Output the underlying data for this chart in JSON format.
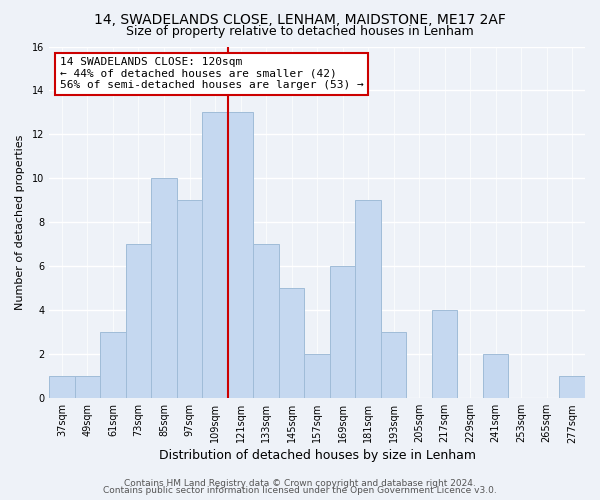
{
  "title1": "14, SWADELANDS CLOSE, LENHAM, MAIDSTONE, ME17 2AF",
  "title2": "Size of property relative to detached houses in Lenham",
  "xlabel": "Distribution of detached houses by size in Lenham",
  "ylabel": "Number of detached properties",
  "categories": [
    "37sqm",
    "49sqm",
    "61sqm",
    "73sqm",
    "85sqm",
    "97sqm",
    "109sqm",
    "121sqm",
    "133sqm",
    "145sqm",
    "157sqm",
    "169sqm",
    "181sqm",
    "193sqm",
    "205sqm",
    "217sqm",
    "229sqm",
    "241sqm",
    "253sqm",
    "265sqm",
    "277sqm"
  ],
  "values": [
    1,
    1,
    3,
    7,
    10,
    9,
    13,
    13,
    7,
    5,
    2,
    6,
    9,
    3,
    0,
    4,
    0,
    2,
    0,
    0,
    1
  ],
  "bar_color": "#c5d8f0",
  "bar_edge_color": "#a0bcd8",
  "vline_index": 7,
  "vline_color": "#cc0000",
  "annotation_box_text": "14 SWADELANDS CLOSE: 120sqm\n← 44% of detached houses are smaller (42)\n56% of semi-detached houses are larger (53) →",
  "ylim": [
    0,
    16
  ],
  "yticks": [
    0,
    2,
    4,
    6,
    8,
    10,
    12,
    14,
    16
  ],
  "footer1": "Contains HM Land Registry data © Crown copyright and database right 2024.",
  "footer2": "Contains public sector information licensed under the Open Government Licence v3.0.",
  "bg_color": "#eef2f8",
  "plot_bg_color": "#eef2f8",
  "title1_fontsize": 10,
  "title2_fontsize": 9,
  "xlabel_fontsize": 9,
  "ylabel_fontsize": 8,
  "tick_fontsize": 7,
  "annotation_fontsize": 8,
  "footer_fontsize": 6.5
}
